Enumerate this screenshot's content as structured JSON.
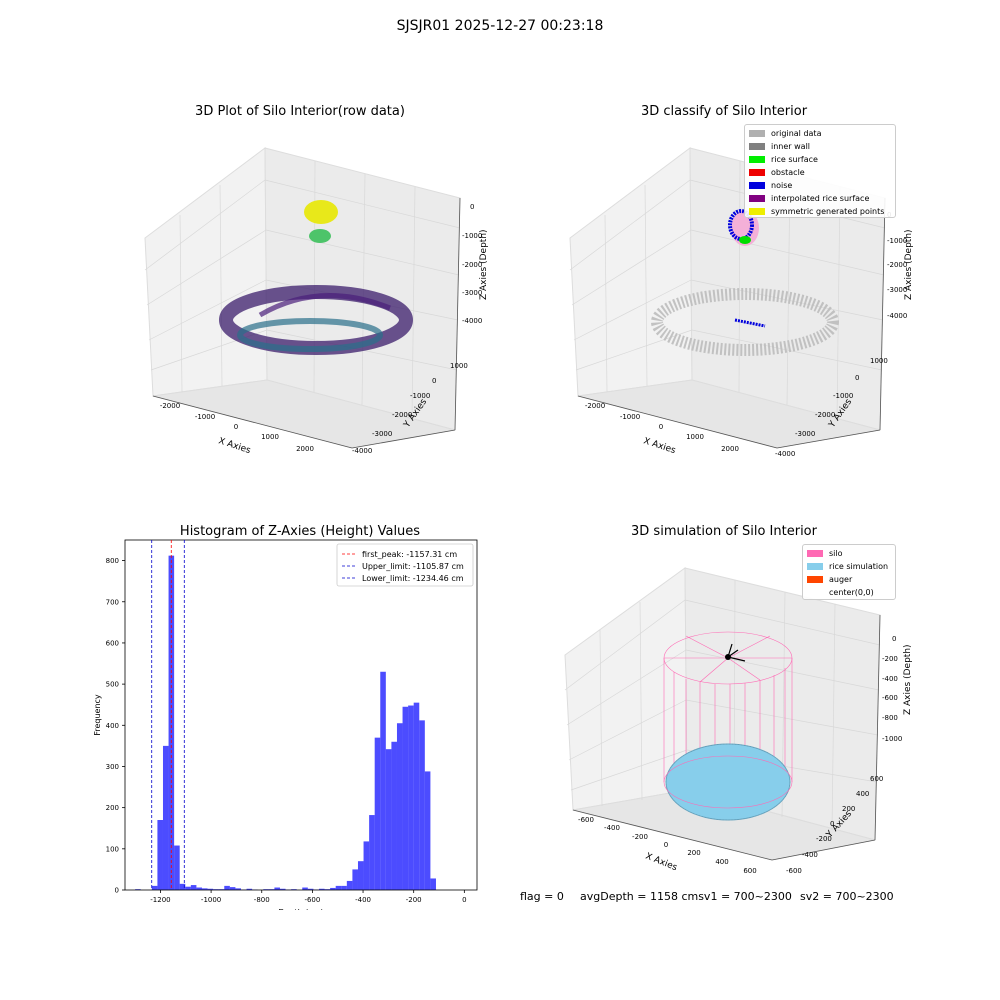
{
  "suptitle": "SJSJR01 2025-12-27 00:23:18",
  "panels": {
    "raw": {
      "title": "3D Plot of Silo Interior(row data)",
      "xlabel": "X Axies",
      "ylabel": "Y Axies",
      "zlabel": "Z Axies (Depth)",
      "xticks": [
        "-2000",
        "-1000",
        "0",
        "1000",
        "2000"
      ],
      "yticks": [
        "1000",
        "0",
        "-1000",
        "-2000",
        "-3000",
        "-4000"
      ],
      "zticks": [
        "0",
        "-1000",
        "-2000",
        "-3000",
        "-4000"
      ]
    },
    "classify": {
      "title": "3D classify of Silo Interior",
      "xlabel": "X Axies",
      "ylabel": "Y Axies",
      "zlabel": "Z Axies (Depth)",
      "xticks": [
        "-2000",
        "-1000",
        "0",
        "1000",
        "2000"
      ],
      "yticks": [
        "1000",
        "0",
        "-1000",
        "-2000",
        "-3000",
        "-4000"
      ],
      "zticks": [
        "0",
        "-1000",
        "-2000",
        "-3000",
        "-4000"
      ],
      "legend": [
        {
          "label": "original data",
          "color": "#b0b0b0"
        },
        {
          "label": "inner wall",
          "color": "#808080"
        },
        {
          "label": "rice surface",
          "color": "#00ee00"
        },
        {
          "label": "obstacle",
          "color": "#ee0000"
        },
        {
          "label": "noise",
          "color": "#0000dd"
        },
        {
          "label": "interpolated rice surface",
          "color": "#800080"
        },
        {
          "label": "symmetric generated points",
          "color": "#eeee00"
        }
      ]
    },
    "simulation": {
      "title": "3D simulation of Silo Interior",
      "xlabel": "X Axies",
      "ylabel": "Y Axies",
      "zlabel": "Z Axies (Depth)",
      "xticks": [
        "-600",
        "-400",
        "-200",
        "0",
        "200",
        "400",
        "600"
      ],
      "yticks": [
        "600",
        "400",
        "200",
        "0",
        "-200",
        "-400",
        "-600"
      ],
      "zticks": [
        "0",
        "-200",
        "-400",
        "-600",
        "-800",
        "-1000"
      ],
      "legend": [
        {
          "label": "silo",
          "color": "#ff69b4"
        },
        {
          "label": "rice simulation",
          "color": "#87ceeb"
        },
        {
          "label": "auger",
          "color": "#ff4500"
        },
        {
          "label": "center(0,0)",
          "color": "#ffffff"
        }
      ]
    }
  },
  "chart_data": {
    "type": "bar",
    "title": "Histogram of Z-Axies (Height) Values",
    "xlabel": "Depth (cm)",
    "ylabel": "Frequency",
    "xlim": [
      -1340,
      50
    ],
    "ylim": [
      0,
      850
    ],
    "xticks": [
      -1200,
      -1000,
      -800,
      -600,
      -400,
      -200,
      0
    ],
    "yticks": [
      0,
      100,
      200,
      300,
      400,
      500,
      600,
      700,
      800
    ],
    "bin_width": 22,
    "bins": [
      {
        "x": -1300,
        "v": 2
      },
      {
        "x": -1234,
        "v": 10
      },
      {
        "x": -1212,
        "v": 170
      },
      {
        "x": -1190,
        "v": 350
      },
      {
        "x": -1168,
        "v": 812
      },
      {
        "x": -1146,
        "v": 108
      },
      {
        "x": -1124,
        "v": 15
      },
      {
        "x": -1102,
        "v": 8
      },
      {
        "x": -1080,
        "v": 12
      },
      {
        "x": -1058,
        "v": 6
      },
      {
        "x": -1036,
        "v": 4
      },
      {
        "x": -1014,
        "v": 3
      },
      {
        "x": -992,
        "v": 2
      },
      {
        "x": -970,
        "v": 2
      },
      {
        "x": -948,
        "v": 10
      },
      {
        "x": -926,
        "v": 7
      },
      {
        "x": -904,
        "v": 4
      },
      {
        "x": -882,
        "v": 1
      },
      {
        "x": -860,
        "v": 3
      },
      {
        "x": -838,
        "v": 1
      },
      {
        "x": -794,
        "v": 2
      },
      {
        "x": -772,
        "v": 2
      },
      {
        "x": -750,
        "v": 6
      },
      {
        "x": -728,
        "v": 3
      },
      {
        "x": -706,
        "v": 1
      },
      {
        "x": -684,
        "v": 2
      },
      {
        "x": -640,
        "v": 6
      },
      {
        "x": -618,
        "v": 3
      },
      {
        "x": -596,
        "v": 1
      },
      {
        "x": -574,
        "v": 3
      },
      {
        "x": -552,
        "v": 2
      },
      {
        "x": -530,
        "v": 5
      },
      {
        "x": -508,
        "v": 10
      },
      {
        "x": -486,
        "v": 10
      },
      {
        "x": -464,
        "v": 22
      },
      {
        "x": -442,
        "v": 50
      },
      {
        "x": -420,
        "v": 70
      },
      {
        "x": -398,
        "v": 118
      },
      {
        "x": -376,
        "v": 182
      },
      {
        "x": -354,
        "v": 370
      },
      {
        "x": -332,
        "v": 530
      },
      {
        "x": -310,
        "v": 342
      },
      {
        "x": -288,
        "v": 360
      },
      {
        "x": -266,
        "v": 405
      },
      {
        "x": -244,
        "v": 445
      },
      {
        "x": -222,
        "v": 448
      },
      {
        "x": -200,
        "v": 455
      },
      {
        "x": -178,
        "v": 412
      },
      {
        "x": -156,
        "v": 288
      },
      {
        "x": -134,
        "v": 28
      }
    ],
    "vlines": [
      {
        "x": -1157.31,
        "color": "#ff0000",
        "label": "first_peak: -1157.31 cm"
      },
      {
        "x": -1105.87,
        "color": "#0000cc",
        "label": "Upper_limit: -1105.87 cm"
      },
      {
        "x": -1234.46,
        "color": "#0000cc",
        "label": "Lower_limit: -1234.46 cm"
      }
    ],
    "bar_color": "#0000ff",
    "legend_position": "upper right"
  },
  "status": {
    "flag": "flag = 0",
    "avg": "avgDepth = 1158 cmsv1 = 700~2300",
    "sv2": "sv2 = 700~2300"
  }
}
